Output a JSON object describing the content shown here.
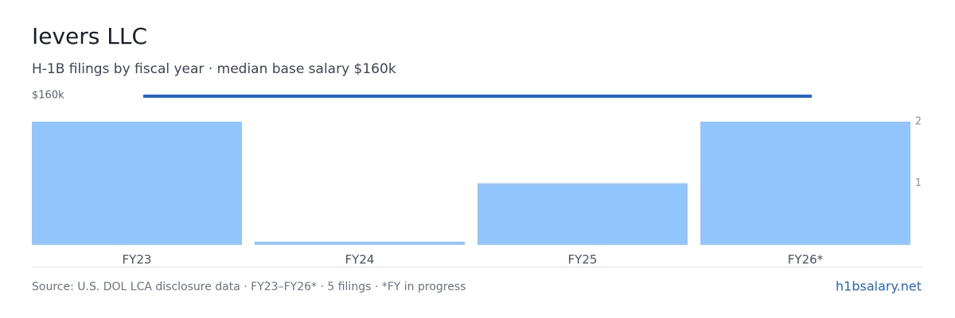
{
  "chart_data": {
    "type": "bar",
    "title": "Ievers LLC",
    "subtitle": "H-1B filings by fiscal year · median base salary $160k",
    "categories": [
      "FY23",
      "FY24",
      "FY25",
      "FY26*"
    ],
    "series": [
      {
        "name": "H-1B filings",
        "color": "#93c5fd",
        "values": [
          2,
          0,
          1,
          2
        ]
      },
      {
        "name": "Median base salary",
        "color": "#2563c9",
        "axis": "y2",
        "values": [
          160000,
          160000,
          160000,
          160000
        ],
        "value_labels": [
          "$160k",
          null,
          null,
          null
        ]
      }
    ],
    "ylim": [
      0,
      2.4
    ],
    "yticks": [
      1,
      2
    ],
    "y2lim": [
      0,
      160000
    ],
    "source": "Source: U.S. DOL LCA disclosure data · FY23–FY26* · 5 filings · *FY in progress",
    "site": "h1bsalary.net"
  }
}
